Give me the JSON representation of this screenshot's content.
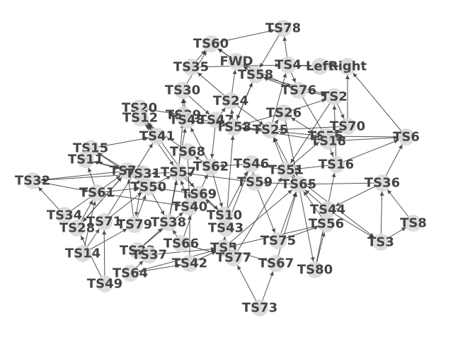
{
  "colors": {
    "node_fill": "#d9d9d9",
    "edge": "#333333",
    "label": "#444444",
    "background": "#ffffff"
  },
  "nodes": [
    {
      "id": "TS78",
      "label": "TS78"
    },
    {
      "id": "TS60",
      "label": "TS60"
    },
    {
      "id": "FWD",
      "label": "FWD"
    },
    {
      "id": "TS35",
      "label": "TS35"
    },
    {
      "id": "TS58",
      "label": "TS58"
    },
    {
      "id": "TS4",
      "label": "TS4"
    },
    {
      "id": "Left",
      "label": "Left"
    },
    {
      "id": "Right",
      "label": "Right"
    },
    {
      "id": "TS30",
      "label": "TS30"
    },
    {
      "id": "TS76",
      "label": "TS76"
    },
    {
      "id": "TS2",
      "label": "TS2"
    },
    {
      "id": "TS24",
      "label": "TS24"
    },
    {
      "id": "TS20",
      "label": "TS20"
    },
    {
      "id": "TS12",
      "label": "TS12"
    },
    {
      "id": "TS39",
      "label": "TS39"
    },
    {
      "id": "TS48",
      "label": "TS48"
    },
    {
      "id": "TS47",
      "label": "TS47"
    },
    {
      "id": "TS26",
      "label": "TS26"
    },
    {
      "id": "TS53",
      "label": "TS53"
    },
    {
      "id": "TS25",
      "label": "TS25"
    },
    {
      "id": "TS70",
      "label": "TS70"
    },
    {
      "id": "TS41",
      "label": "TS41"
    },
    {
      "id": "TS55",
      "label": "TS55"
    },
    {
      "id": "TS18",
      "label": "TS18"
    },
    {
      "id": "TS6",
      "label": "TS6"
    },
    {
      "id": "TS15",
      "label": "TS15"
    },
    {
      "id": "TS68",
      "label": "TS68"
    },
    {
      "id": "TS11",
      "label": "TS11"
    },
    {
      "id": "TS16",
      "label": "TS16"
    },
    {
      "id": "TS46",
      "label": "TS46"
    },
    {
      "id": "TS62",
      "label": "TS62"
    },
    {
      "id": "TS51",
      "label": "TS51"
    },
    {
      "id": "TS72",
      "label": "TS72"
    },
    {
      "id": "TS31",
      "label": "TS31"
    },
    {
      "id": "TS57",
      "label": "TS57"
    },
    {
      "id": "TS32",
      "label": "TS32"
    },
    {
      "id": "TS59",
      "label": "TS59"
    },
    {
      "id": "TS65",
      "label": "TS65"
    },
    {
      "id": "TS36",
      "label": "TS36"
    },
    {
      "id": "TS50",
      "label": "TS50"
    },
    {
      "id": "TS61",
      "label": "TS61"
    },
    {
      "id": "TS69",
      "label": "TS69"
    },
    {
      "id": "TS40",
      "label": "TS40"
    },
    {
      "id": "TS44",
      "label": "TS44"
    },
    {
      "id": "TS34",
      "label": "TS34"
    },
    {
      "id": "TS10",
      "label": "TS10"
    },
    {
      "id": "TS8",
      "label": "TS8"
    },
    {
      "id": "TS71",
      "label": "TS71"
    },
    {
      "id": "TS79",
      "label": "TS79"
    },
    {
      "id": "TS38",
      "label": "TS38"
    },
    {
      "id": "TS56",
      "label": "TS56"
    },
    {
      "id": "TS28",
      "label": "TS28"
    },
    {
      "id": "TS43",
      "label": "TS43"
    },
    {
      "id": "TS75",
      "label": "TS75"
    },
    {
      "id": "TS3",
      "label": "TS3"
    },
    {
      "id": "TS66",
      "label": "TS66"
    },
    {
      "id": "TS14",
      "label": "TS14"
    },
    {
      "id": "TS23",
      "label": "TS23"
    },
    {
      "id": "TS37",
      "label": "TS37"
    },
    {
      "id": "TS5",
      "label": "TS5"
    },
    {
      "id": "TS77",
      "label": "TS77"
    },
    {
      "id": "TS42",
      "label": "TS42"
    },
    {
      "id": "TS67",
      "label": "TS67"
    },
    {
      "id": "TS80",
      "label": "TS80"
    },
    {
      "id": "TS64",
      "label": "TS64"
    },
    {
      "id": "TS49",
      "label": "TS49"
    },
    {
      "id": "TS73",
      "label": "TS73"
    }
  ],
  "edges": [
    [
      "TS60",
      "TS78"
    ],
    [
      "TS4",
      "TS78"
    ],
    [
      "TS35",
      "TS60"
    ],
    [
      "FWD",
      "TS60"
    ],
    [
      "TS58",
      "TS60"
    ],
    [
      "TS30",
      "TS60"
    ],
    [
      "TS4",
      "Left"
    ],
    [
      "TS4",
      "Right"
    ],
    [
      "TS58",
      "FWD"
    ],
    [
      "TS24",
      "FWD"
    ],
    [
      "TS76",
      "TS58"
    ],
    [
      "TS53",
      "TS58"
    ],
    [
      "TS25",
      "TS4"
    ],
    [
      "TS76",
      "TS2"
    ],
    [
      "TS58",
      "TS2"
    ],
    [
      "TS70",
      "Right"
    ],
    [
      "TS6",
      "Right"
    ],
    [
      "TS26",
      "TS2"
    ],
    [
      "TS2",
      "TS70"
    ],
    [
      "TS16",
      "TS2"
    ],
    [
      "TS24",
      "TS35"
    ],
    [
      "TS48",
      "TS30"
    ],
    [
      "TS47",
      "TS24"
    ],
    [
      "TS53",
      "TS24"
    ],
    [
      "TS39",
      "TS30"
    ],
    [
      "TS20",
      "TS41"
    ],
    [
      "TS12",
      "TS41"
    ],
    [
      "TS41",
      "TS12"
    ],
    [
      "TS68",
      "TS12"
    ],
    [
      "TS62",
      "TS48"
    ],
    [
      "TS57",
      "TS39"
    ],
    [
      "TS53",
      "TS47"
    ],
    [
      "TS26",
      "TS53"
    ],
    [
      "TS25",
      "TS26"
    ],
    [
      "TS51",
      "TS25"
    ],
    [
      "TS65",
      "TS25"
    ],
    [
      "TS55",
      "TS53"
    ],
    [
      "TS18",
      "TS53"
    ],
    [
      "TS70",
      "TS25"
    ],
    [
      "TS6",
      "TS55"
    ],
    [
      "TS18",
      "TS6"
    ],
    [
      "TS36",
      "TS6"
    ],
    [
      "TS16",
      "TS6"
    ],
    [
      "TS55",
      "TS16"
    ],
    [
      "TS51",
      "TS55"
    ],
    [
      "TS15",
      "TS41"
    ],
    [
      "TS11",
      "TS15"
    ],
    [
      "TS72",
      "TS15"
    ],
    [
      "TS31",
      "TS11"
    ],
    [
      "TS61",
      "TS11"
    ],
    [
      "TS62",
      "TS68"
    ],
    [
      "TS46",
      "TS62"
    ],
    [
      "TS59",
      "TS46"
    ],
    [
      "TS51",
      "TS46"
    ],
    [
      "TS65",
      "TS59"
    ],
    [
      "TS65",
      "TS51"
    ],
    [
      "TS36",
      "TS65"
    ],
    [
      "TS44",
      "TS65"
    ],
    [
      "TS56",
      "TS65"
    ],
    [
      "TS3",
      "TS36"
    ],
    [
      "TS8",
      "TS36"
    ],
    [
      "TS3",
      "TS8"
    ],
    [
      "TS80",
      "TS16"
    ],
    [
      "TS75",
      "TS65"
    ],
    [
      "TS67",
      "TS65"
    ],
    [
      "TS73",
      "TS67"
    ],
    [
      "TS72",
      "TS32"
    ],
    [
      "TS31",
      "TS32"
    ],
    [
      "TS57",
      "TS31"
    ],
    [
      "TS50",
      "TS57"
    ],
    [
      "TS69",
      "TS50"
    ],
    [
      "TS40",
      "TS69"
    ],
    [
      "TS10",
      "TS69"
    ],
    [
      "TS43",
      "TS10"
    ],
    [
      "TS5",
      "TS43"
    ],
    [
      "TS77",
      "TS5"
    ],
    [
      "TS73",
      "TS77"
    ],
    [
      "TS34",
      "TS32"
    ],
    [
      "TS28",
      "TS61"
    ],
    [
      "TS71",
      "TS50"
    ],
    [
      "TS79",
      "TS72"
    ],
    [
      "TS38",
      "TS57"
    ],
    [
      "TS66",
      "TS38"
    ],
    [
      "TS23",
      "TS38"
    ],
    [
      "TS37",
      "TS23"
    ],
    [
      "TS64",
      "TS37"
    ],
    [
      "TS49",
      "TS28"
    ],
    [
      "TS14",
      "TS61"
    ],
    [
      "TS42",
      "TS5"
    ],
    [
      "TS64",
      "TS5"
    ],
    [
      "TS67",
      "TS5"
    ],
    [
      "TS80",
      "TS56"
    ],
    [
      "TS44",
      "TS3"
    ],
    [
      "TS56",
      "TS5"
    ],
    [
      "TS75",
      "TS56"
    ],
    [
      "TS10",
      "TS46"
    ],
    [
      "TS40",
      "TS57"
    ],
    [
      "TS69",
      "TS62"
    ],
    [
      "TS59",
      "TS57"
    ],
    [
      "TS43",
      "TS53"
    ],
    [
      "TS38",
      "TS48"
    ],
    [
      "TS61",
      "TS50"
    ],
    [
      "TS34",
      "TS72"
    ],
    [
      "TS71",
      "TS41"
    ],
    [
      "TS79",
      "TS50"
    ],
    [
      "TS28",
      "TS72"
    ],
    [
      "TS14",
      "TS71"
    ],
    [
      "TS49",
      "TS71"
    ],
    [
      "TS66",
      "TS69"
    ],
    [
      "TS23",
      "TS40"
    ],
    [
      "TS42",
      "TS40"
    ],
    [
      "TS77",
      "TS51"
    ],
    [
      "TS5",
      "TS65"
    ],
    [
      "TS55",
      "TS70"
    ],
    [
      "TS18",
      "TS26"
    ],
    [
      "TS16",
      "TS51"
    ],
    [
      "TS12",
      "TS57"
    ],
    [
      "TS20",
      "TS39"
    ],
    [
      "TS47",
      "TS62"
    ],
    [
      "TS53",
      "TS25"
    ],
    [
      "TS48",
      "TS53"
    ],
    [
      "TS39",
      "TS53"
    ],
    [
      "TS30",
      "TS47"
    ],
    [
      "TS35",
      "TS4"
    ],
    [
      "FWD",
      "TS76"
    ],
    [
      "TS58",
      "TS53"
    ],
    [
      "TS76",
      "TS18"
    ],
    [
      "TS4",
      "TS76"
    ],
    [
      "TS78",
      "TS58"
    ],
    [
      "TS2",
      "TS51"
    ],
    [
      "TS24",
      "TS25"
    ],
    [
      "TS26",
      "TS65"
    ],
    [
      "TS62",
      "TS10"
    ],
    [
      "TS46",
      "TS43"
    ],
    [
      "TS57",
      "TS10"
    ],
    [
      "TS65",
      "TS80"
    ],
    [
      "TS59",
      "TS75"
    ],
    [
      "TS51",
      "TS3"
    ],
    [
      "TS36",
      "TS44"
    ],
    [
      "TS50",
      "TS38"
    ],
    [
      "TS61",
      "TS40"
    ],
    [
      "TS11",
      "TS72"
    ],
    [
      "TS15",
      "TS50"
    ],
    [
      "TS68",
      "TS40"
    ],
    [
      "TS41",
      "TS69"
    ],
    [
      "TS31",
      "TS79"
    ],
    [
      "TS72",
      "TS28"
    ],
    [
      "TS32",
      "TS61"
    ],
    [
      "TS37",
      "TS5"
    ],
    [
      "TS66",
      "TS77"
    ],
    [
      "TS64",
      "TS42"
    ],
    [
      "TS14",
      "TS79"
    ]
  ]
}
